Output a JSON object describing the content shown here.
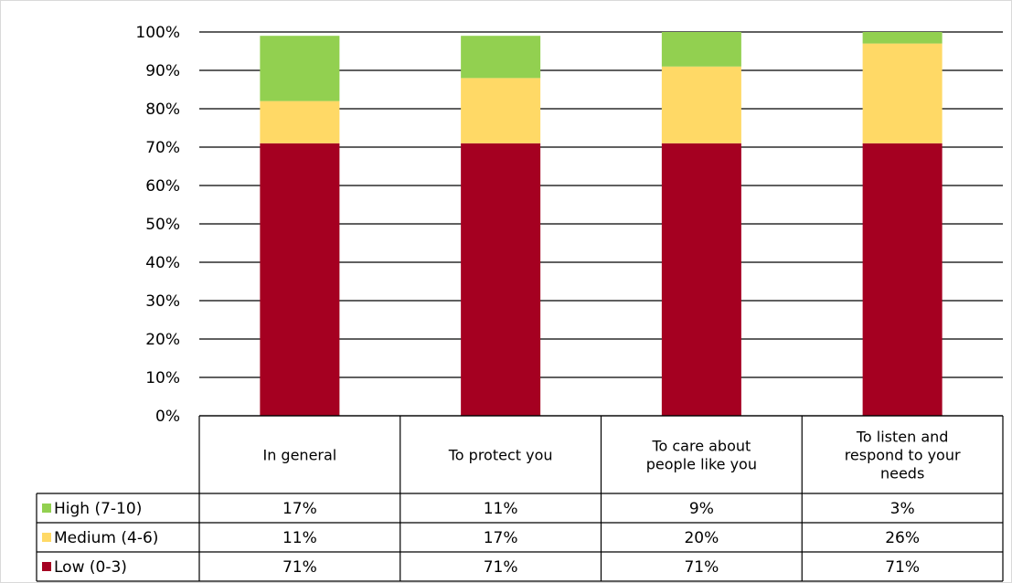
{
  "chart_data": {
    "type": "bar",
    "stacked": true,
    "categories": [
      [
        "In general"
      ],
      [
        "To protect you"
      ],
      [
        "To care about",
        "people like you"
      ],
      [
        "To listen and",
        "respond to your",
        "needs"
      ]
    ],
    "series": [
      {
        "name": "Low (0-3)",
        "color": "#A50021",
        "values": [
          71,
          71,
          71,
          71
        ],
        "labels": [
          "71%",
          "71%",
          "71%",
          "71%"
        ]
      },
      {
        "name": "Medium (4-6)",
        "color": "#FFD966",
        "values": [
          11,
          17,
          20,
          26
        ],
        "labels": [
          "11%",
          "17%",
          "20%",
          "26%"
        ]
      },
      {
        "name": "High (7-10)",
        "color": "#92D050",
        "values": [
          17,
          11,
          9,
          3
        ],
        "labels": [
          "17%",
          "11%",
          "9%",
          "3%"
        ]
      }
    ],
    "table_row_order": [
      "High (7-10)",
      "Medium (4-6)",
      "Low (0-3)"
    ],
    "ylim": [
      0,
      100
    ],
    "yticks": [
      "0%",
      "10%",
      "20%",
      "30%",
      "40%",
      "50%",
      "60%",
      "70%",
      "80%",
      "90%",
      "100%"
    ],
    "grid": true,
    "legend": "data-table"
  }
}
